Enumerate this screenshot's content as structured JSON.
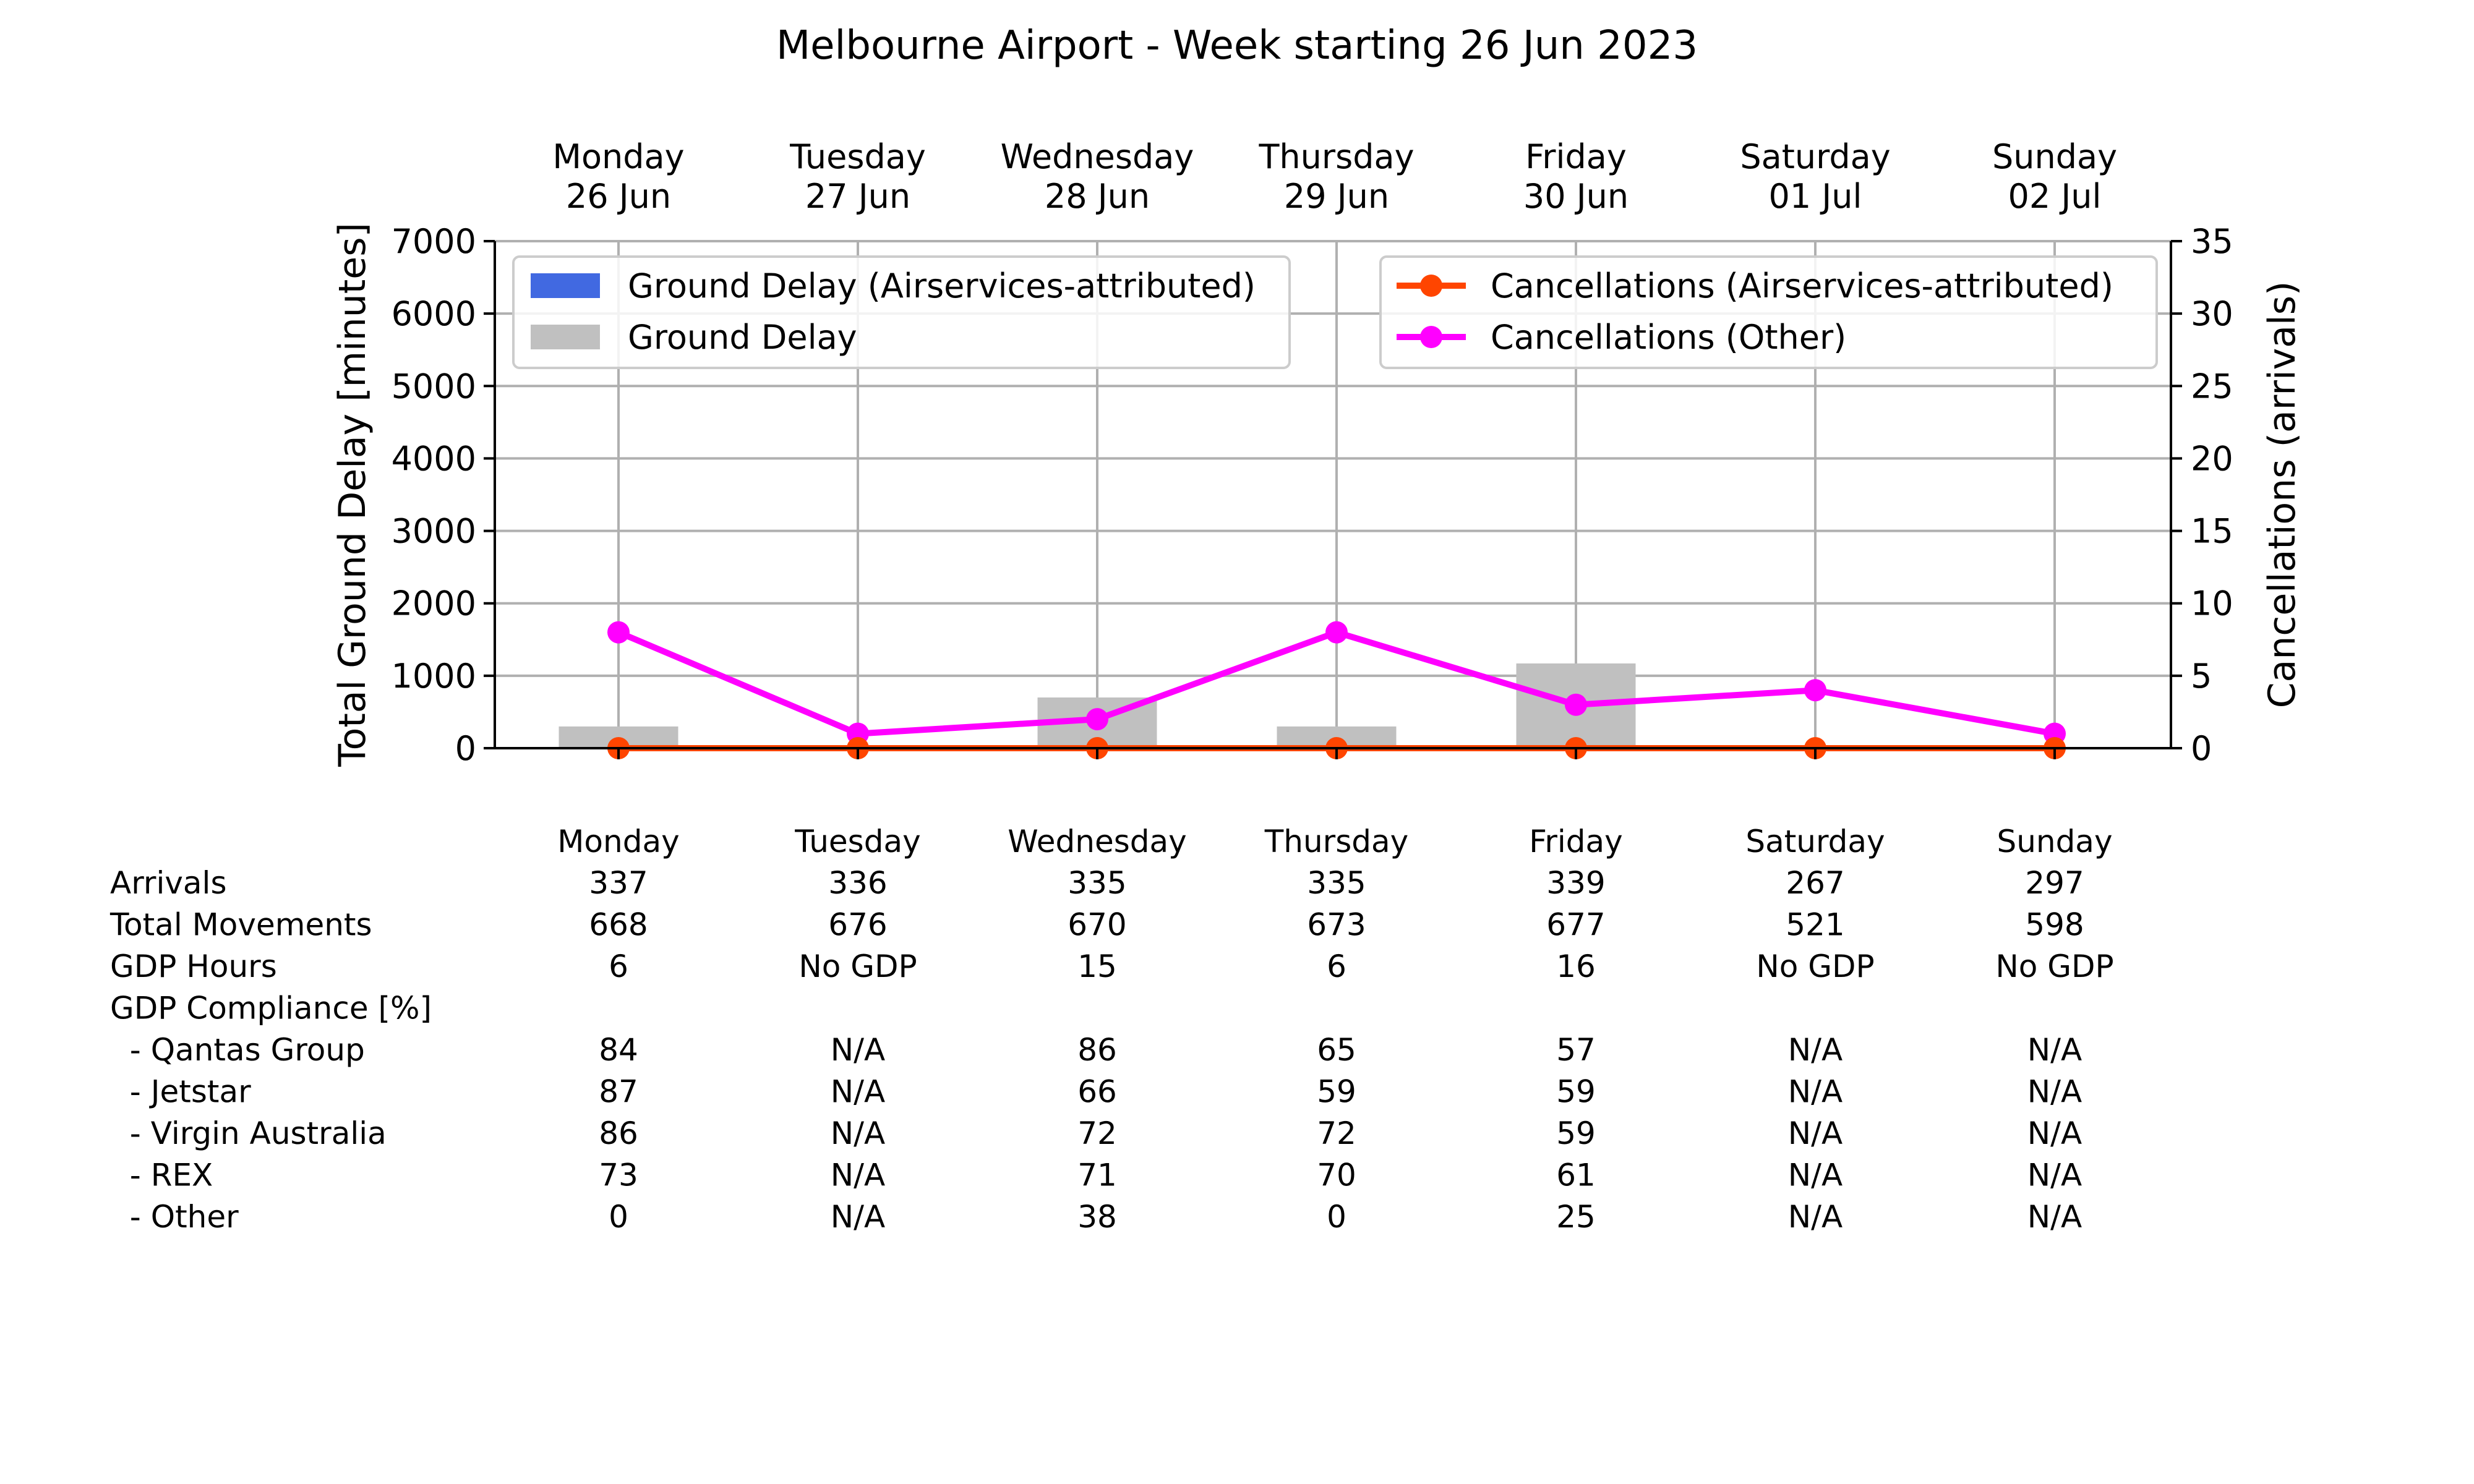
{
  "chart_data": {
    "type": "bar",
    "title": "Melbourne Airport - Week starting 26 Jun 2023",
    "categories": [
      {
        "day": "Monday",
        "date": "26 Jun"
      },
      {
        "day": "Tuesday",
        "date": "27 Jun"
      },
      {
        "day": "Wednesday",
        "date": "28 Jun"
      },
      {
        "day": "Thursday",
        "date": "29 Jun"
      },
      {
        "day": "Friday",
        "date": "30 Jun"
      },
      {
        "day": "Saturday",
        "date": "01 Jul"
      },
      {
        "day": "Sunday",
        "date": "02 Jul"
      }
    ],
    "ylabel_left": "Total Ground Delay [minutes]",
    "ylabel_right": "Cancellations (arrivals)",
    "ylim_left": [
      0,
      7000
    ],
    "yticks_left": [
      0,
      1000,
      2000,
      3000,
      4000,
      5000,
      6000,
      7000
    ],
    "ylim_right": [
      0,
      35
    ],
    "yticks_right": [
      0,
      5,
      10,
      15,
      20,
      25,
      30,
      35
    ],
    "grid": true,
    "legend_left_placement": "upper-left",
    "legend_right_placement": "upper-right",
    "series": [
      {
        "name": "Ground Delay (Airservices-attributed)",
        "kind": "bar",
        "axis": "left",
        "color": "#4169e1",
        "values": [
          0,
          0,
          0,
          0,
          0,
          0,
          0
        ]
      },
      {
        "name": "Ground Delay",
        "kind": "bar",
        "axis": "left",
        "color": "#c0c0c0",
        "values": [
          300,
          0,
          700,
          300,
          1170,
          0,
          0
        ]
      },
      {
        "name": "Cancellations (Airservices-attributed)",
        "kind": "line",
        "axis": "right",
        "color": "#ff4500",
        "values": [
          0,
          0,
          0,
          0,
          0,
          0,
          0
        ]
      },
      {
        "name": "Cancellations (Other)",
        "kind": "line",
        "axis": "right",
        "color": "#ff00ff",
        "values": [
          8,
          1,
          2,
          8,
          3,
          4,
          1
        ]
      }
    ]
  },
  "table": {
    "header": [
      "Monday",
      "Tuesday",
      "Wednesday",
      "Thursday",
      "Friday",
      "Saturday",
      "Sunday"
    ],
    "rows": [
      {
        "label": "Arrivals",
        "values": [
          "337",
          "336",
          "335",
          "335",
          "339",
          "267",
          "297"
        ]
      },
      {
        "label": "Total Movements",
        "values": [
          "668",
          "676",
          "670",
          "673",
          "677",
          "521",
          "598"
        ]
      },
      {
        "label": "GDP Hours",
        "values": [
          "6",
          "No GDP",
          "15",
          "6",
          "16",
          "No GDP",
          "No GDP"
        ]
      },
      {
        "label": "GDP Compliance [%]",
        "values": [
          "",
          "",
          "",
          "",
          "",
          "",
          ""
        ]
      },
      {
        "label": "  - Qantas Group",
        "values": [
          "84",
          "N/A",
          "86",
          "65",
          "57",
          "N/A",
          "N/A"
        ]
      },
      {
        "label": "  - Jetstar",
        "values": [
          "87",
          "N/A",
          "66",
          "59",
          "59",
          "N/A",
          "N/A"
        ]
      },
      {
        "label": "  - Virgin Australia",
        "values": [
          "86",
          "N/A",
          "72",
          "72",
          "59",
          "N/A",
          "N/A"
        ]
      },
      {
        "label": "  - REX",
        "values": [
          "73",
          "N/A",
          "71",
          "70",
          "61",
          "N/A",
          "N/A"
        ]
      },
      {
        "label": "  - Other",
        "values": [
          "0",
          "N/A",
          "38",
          "0",
          "25",
          "N/A",
          "N/A"
        ]
      }
    ]
  }
}
